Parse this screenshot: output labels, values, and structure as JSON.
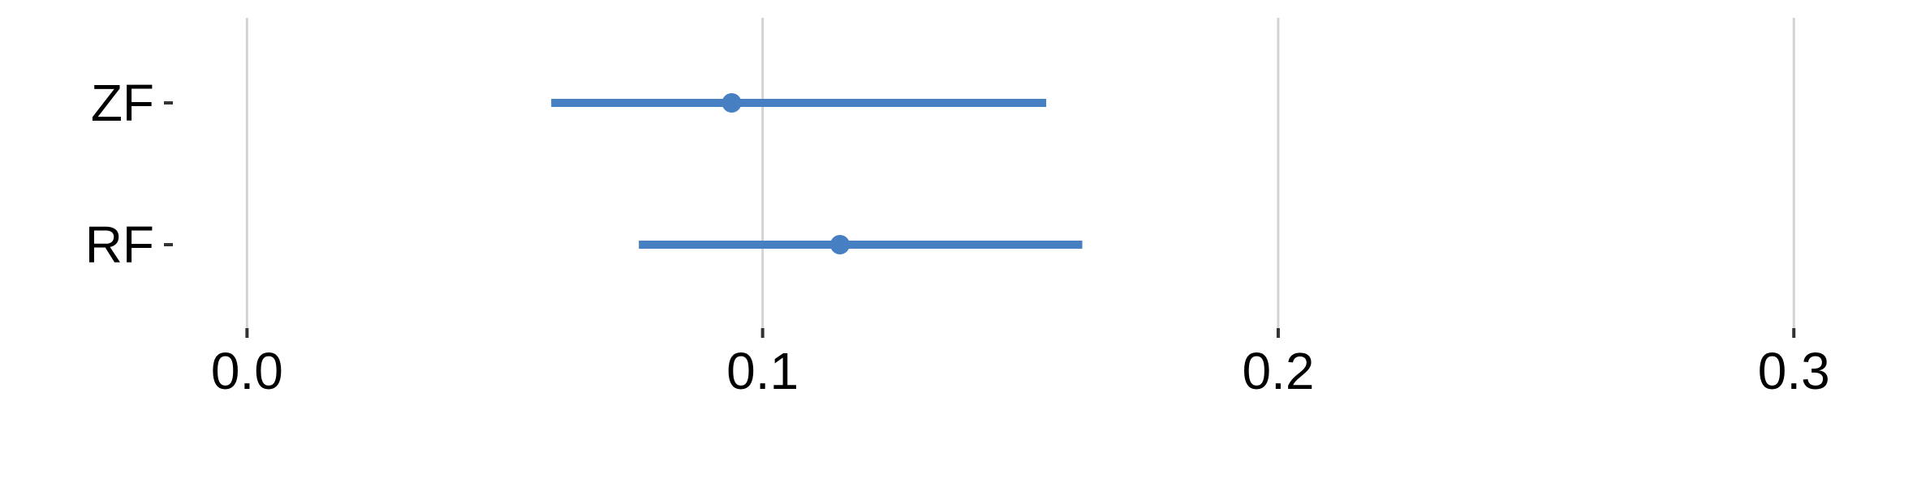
{
  "chart_data": {
    "type": "forest",
    "title": "",
    "xlabel": "",
    "ylabel": "",
    "xlim": [
      -0.018,
      0.322
    ],
    "xticks": [
      "0.0",
      "0.1",
      "0.2",
      "0.3"
    ],
    "xtick_values": [
      0.0,
      0.1,
      0.2,
      0.3
    ],
    "grid": true,
    "legend": "none",
    "color": "#4680C2",
    "rows": [
      {
        "label": "ZF",
        "estimate": 0.094,
        "lower": 0.059,
        "upper": 0.155
      },
      {
        "label": "RF",
        "estimate": 0.115,
        "lower": 0.076,
        "upper": 0.162
      }
    ]
  }
}
